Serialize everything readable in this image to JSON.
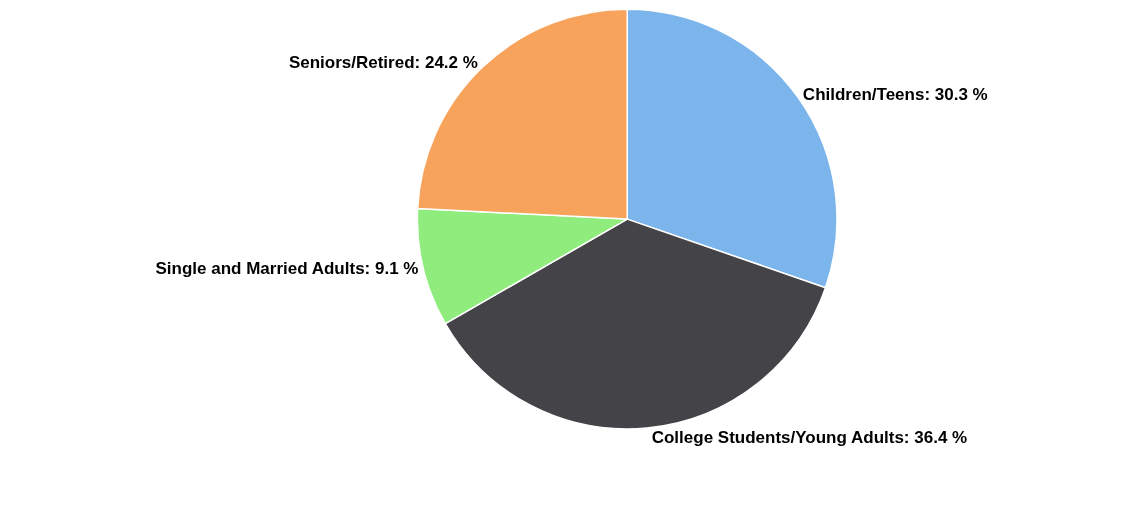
{
  "chart_data": {
    "type": "pie",
    "categories": [
      "Children/Teens",
      "College Students/Young Adults",
      "Single and Married Adults",
      "Seniors/Retired"
    ],
    "values": [
      30.3,
      36.4,
      9.1,
      24.2
    ],
    "value_labels": [
      "30.3 %",
      "36.4 %",
      "9.1 %",
      "24.2 %"
    ],
    "colors": [
      "#7cb5ec",
      "#434348",
      "#90ed7d",
      "#f7a35c"
    ],
    "legend": false
  }
}
